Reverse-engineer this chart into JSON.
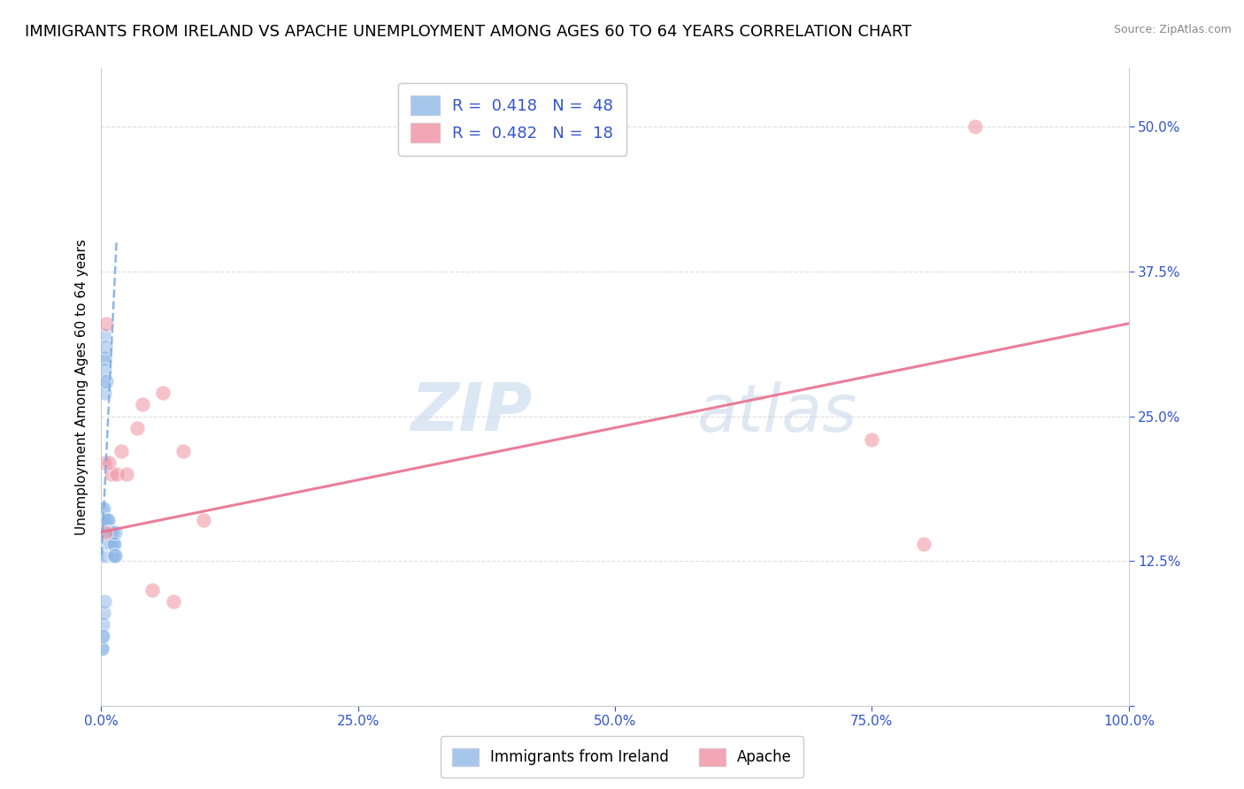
{
  "title": "IMMIGRANTS FROM IRELAND VS APACHE UNEMPLOYMENT AMONG AGES 60 TO 64 YEARS CORRELATION CHART",
  "source": "Source: ZipAtlas.com",
  "ylabel": "Unemployment Among Ages 60 to 64 years",
  "xlim": [
    0,
    100
  ],
  "ylim": [
    0,
    55
  ],
  "xticks": [
    0,
    25,
    50,
    75,
    100
  ],
  "xtick_labels": [
    "0.0%",
    "25.0%",
    "50.0%",
    "75.0%",
    "100.0%"
  ],
  "yticks": [
    0,
    12.5,
    25,
    37.5,
    50
  ],
  "ytick_labels": [
    "",
    "12.5%",
    "25.0%",
    "37.5%",
    "50.0%"
  ],
  "legend_entries": [
    {
      "label": "R =  0.418   N =  48",
      "color": "#a8c4e8"
    },
    {
      "label": "R =  0.482   N =  18",
      "color": "#f5a8b8"
    }
  ],
  "blue_scatter_x": [
    0.05,
    0.08,
    0.1,
    0.1,
    0.12,
    0.15,
    0.15,
    0.18,
    0.2,
    0.2,
    0.22,
    0.25,
    0.28,
    0.3,
    0.3,
    0.35,
    0.38,
    0.4,
    0.4,
    0.42,
    0.45,
    0.5,
    0.5,
    0.55,
    0.6,
    0.65,
    0.7,
    0.75,
    0.8,
    0.85,
    0.9,
    0.95,
    1.0,
    1.05,
    1.1,
    1.15,
    1.2,
    1.25,
    1.3,
    1.35,
    1.4,
    0.05,
    0.07,
    0.09,
    0.13,
    0.17,
    0.23,
    0.33
  ],
  "blue_scatter_y": [
    14,
    16,
    13,
    17,
    15,
    28,
    30,
    14,
    16,
    32,
    14,
    17,
    14,
    30,
    27,
    29,
    15,
    31,
    14,
    16,
    15,
    28,
    13,
    16,
    15,
    14,
    16,
    14,
    15,
    14,
    14,
    15,
    14,
    13,
    15,
    13,
    14,
    13,
    14,
    13,
    15,
    5,
    6,
    5,
    7,
    6,
    8,
    9
  ],
  "pink_scatter_x": [
    0.3,
    0.5,
    1.0,
    1.5,
    2.0,
    3.5,
    5.0,
    7.0,
    75.0,
    80.0,
    85.0,
    0.4,
    0.8,
    2.5,
    4.0,
    6.0,
    8.0,
    10.0
  ],
  "pink_scatter_y": [
    21,
    33,
    20,
    20,
    22,
    24,
    10,
    9,
    23,
    14,
    50,
    15,
    21,
    20,
    26,
    27,
    22,
    16
  ],
  "blue_line_x": [
    0.05,
    1.5
  ],
  "blue_line_y": [
    13,
    40
  ],
  "pink_line_x": [
    0,
    100
  ],
  "pink_line_y": [
    15,
    33
  ],
  "background_color": "#ffffff",
  "grid_color": "#dddddd",
  "title_fontsize": 13,
  "axis_color": "#3355cc",
  "blue_color": "#90b8e8",
  "pink_color": "#f090a0",
  "blue_line_color": "#7aaae0",
  "pink_line_color": "#e87090"
}
